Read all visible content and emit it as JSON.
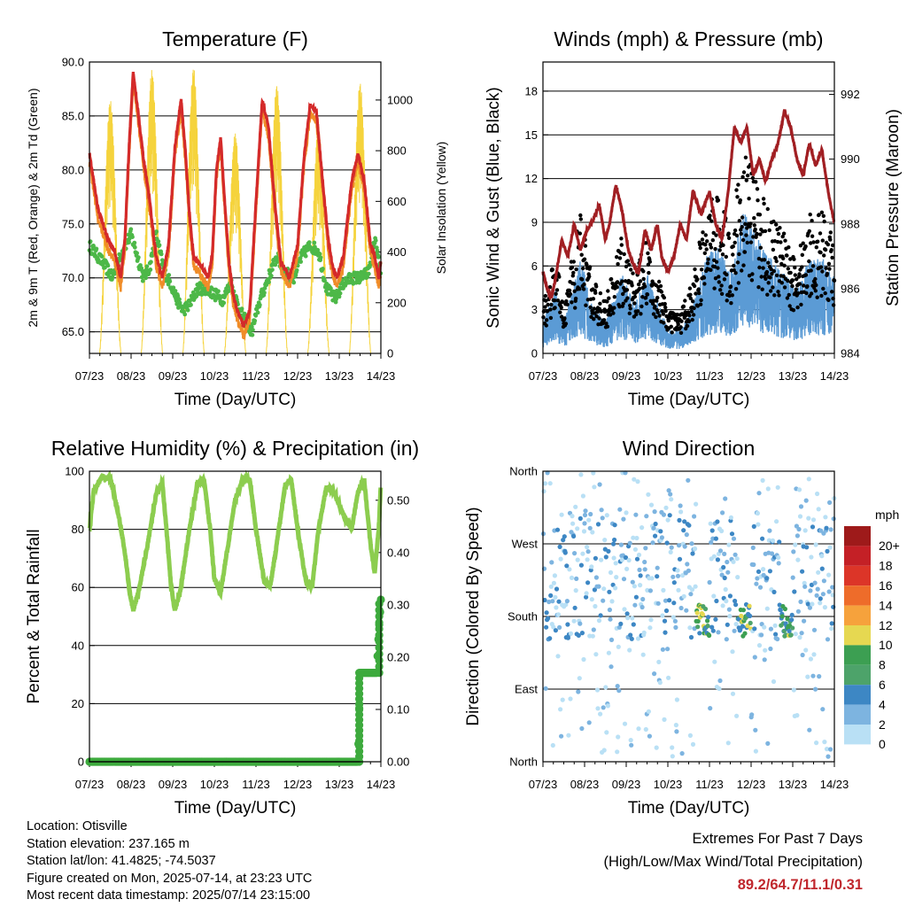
{
  "chart_data": [
    {
      "type": "line",
      "title": "Temperature (F)",
      "xlabel": "Time (Day/UTC)",
      "ylabel_left": "2m & 9m T (Red, Orange) & 2m Td (Green)",
      "ylabel_right": "Solar Insolation (Yellow)",
      "x_ticks": [
        "07/23",
        "08/23",
        "09/23",
        "10/23",
        "11/23",
        "12/23",
        "13/23",
        "14/23"
      ],
      "ylim": [
        63,
        90
      ],
      "y_ticks": [
        "65.0",
        "70.0",
        "75.0",
        "80.0",
        "85.0",
        "90.0"
      ],
      "y2lim": [
        0,
        1150
      ],
      "y2_ticks": [
        "0",
        "200",
        "400",
        "600",
        "800",
        "1000"
      ],
      "colors": {
        "t2m": "#d42a2a",
        "t9m": "#f08c28",
        "td": "#4db848",
        "solar": "#f5d33c"
      },
      "series": [
        {
          "key": "t2m",
          "x": [
            0,
            0.2,
            0.45,
            0.6,
            0.75,
            0.85,
            0.95,
            1.05,
            1.15,
            1.3,
            1.45,
            1.6,
            1.75,
            1.9,
            2.05,
            2.2,
            2.3,
            2.4,
            2.5,
            2.7,
            2.85,
            2.95,
            3.05,
            3.15,
            3.25,
            3.35,
            3.45,
            3.55,
            3.7,
            3.85,
            4.0,
            4.15,
            4.3,
            4.45,
            4.6,
            4.8,
            5.0,
            5.15,
            5.3,
            5.45,
            5.6,
            5.75,
            5.85,
            5.95,
            6.1,
            6.3,
            6.45,
            6.6,
            6.75,
            6.85,
            6.95,
            7.0
          ],
          "values": [
            81.5,
            76.5,
            73.5,
            72.5,
            70,
            73.5,
            82,
            89,
            86,
            81,
            77,
            72,
            70,
            73,
            82,
            86.5,
            82,
            76,
            72,
            71,
            70,
            72,
            80,
            83,
            77,
            71.5,
            68.5,
            67,
            65.5,
            67,
            77,
            86.5,
            84,
            77,
            71.5,
            70,
            73,
            81,
            86,
            85.5,
            79,
            73,
            71,
            70,
            72,
            79,
            81.5,
            79,
            73,
            72,
            70,
            71.5
          ]
        },
        {
          "key": "td",
          "x": [
            0,
            0.2,
            0.4,
            0.55,
            0.7,
            0.85,
            1.0,
            1.15,
            1.3,
            1.45,
            1.6,
            1.8,
            1.95,
            2.1,
            2.25,
            2.4,
            2.6,
            2.8,
            3.0,
            3.2,
            3.4,
            3.6,
            3.75,
            3.9,
            4.1,
            4.3,
            4.5,
            4.7,
            4.9,
            5.1,
            5.3,
            5.5,
            5.7,
            5.9,
            6.1,
            6.3,
            6.5,
            6.7,
            6.85,
            7.0
          ],
          "values": [
            73,
            72,
            71,
            70,
            71.5,
            73,
            74,
            72,
            70,
            71,
            74,
            70.5,
            69.5,
            68,
            67,
            67.5,
            69,
            69,
            68.5,
            68,
            69.5,
            67,
            66,
            65,
            68,
            70,
            72,
            70.5,
            70,
            72,
            73,
            72.5,
            69,
            68,
            69.5,
            70,
            70,
            70.5,
            73.5,
            70.5
          ]
        },
        {
          "key": "solar",
          "axis": "right",
          "days": [
            0.5,
            1.5,
            2.5,
            3.5,
            4.5,
            5.5,
            6.5
          ],
          "peaks": [
            1000,
            1120,
            1130,
            870,
            1060,
            900,
            1070
          ]
        }
      ]
    },
    {
      "type": "scatter",
      "title": "Winds (mph) & Pressure (mb)",
      "xlabel": "Time (Day/UTC)",
      "ylabel_left": "Sonic Wind & Gust (Blue, Black)",
      "ylabel_right": "Station Pressure (Maroon)",
      "x_ticks": [
        "07/23",
        "08/23",
        "09/23",
        "10/23",
        "11/23",
        "12/23",
        "13/23",
        "14/23"
      ],
      "ylim": [
        0,
        20
      ],
      "y_ticks": [
        "0",
        "3",
        "6",
        "9",
        "12",
        "15",
        "18"
      ],
      "y2lim": [
        984,
        993
      ],
      "y2_ticks": [
        "984",
        "986",
        "988",
        "990",
        "992"
      ],
      "colors": {
        "wind": "#5b9bd5",
        "gust": "#000000",
        "pressure": "#a11f23"
      },
      "series": [
        {
          "key": "pressure",
          "axis": "right",
          "x": [
            0,
            0.1,
            0.2,
            0.3,
            0.45,
            0.6,
            0.75,
            0.9,
            1.05,
            1.2,
            1.35,
            1.5,
            1.6,
            1.75,
            1.9,
            2.05,
            2.15,
            2.3,
            2.45,
            2.6,
            2.75,
            2.85,
            3.0,
            3.15,
            3.3,
            3.45,
            3.6,
            3.8,
            4.0,
            4.15,
            4.3,
            4.45,
            4.6,
            4.75,
            4.9,
            5.05,
            5.2,
            5.35,
            5.5,
            5.65,
            5.8,
            5.95,
            6.1,
            6.25,
            6.4,
            6.55,
            6.7,
            6.85,
            7.0
          ],
          "values": [
            986.5,
            986,
            985.7,
            986.3,
            987.5,
            987,
            988,
            987.2,
            987.8,
            988.1,
            988.6,
            987.5,
            988,
            989.2,
            988.4,
            987.2,
            986.8,
            986.5,
            987.8,
            987.2,
            988,
            987,
            986.5,
            987,
            988,
            987.5,
            989,
            988.3,
            989,
            988,
            987.5,
            989,
            991,
            990.5,
            991,
            989.5,
            990,
            989.3,
            990,
            990.5,
            991.5,
            991,
            990,
            989.5,
            990.5,
            989.8,
            990.3,
            989,
            988
          ]
        }
      ]
    },
    {
      "type": "line",
      "title": "Relative Humidity (%) & Precipitation (in)",
      "xlabel": "Time (Day/UTC)",
      "ylabel_left": "Percent & Total Rainfall",
      "x_ticks": [
        "07/23",
        "08/23",
        "09/23",
        "10/23",
        "11/23",
        "12/23",
        "13/23",
        "14/23"
      ],
      "ylim": [
        0,
        100
      ],
      "y_ticks": [
        "0",
        "20",
        "40",
        "60",
        "80",
        "100"
      ],
      "y2lim": [
        0,
        0.5555
      ],
      "y2_ticks": [
        "0.00",
        "0.10",
        "0.20",
        "0.30",
        "0.40",
        "0.50"
      ],
      "colors": {
        "rh": "#8ccd4f",
        "precip": "#3daa3d"
      },
      "series": [
        {
          "key": "rh",
          "x": [
            0,
            0.1,
            0.3,
            0.5,
            0.7,
            0.85,
            0.95,
            1.05,
            1.2,
            1.4,
            1.6,
            1.75,
            1.85,
            1.95,
            2.05,
            2.2,
            2.4,
            2.6,
            2.75,
            2.9,
            3.0,
            3.15,
            3.3,
            3.5,
            3.7,
            3.85,
            4.0,
            4.2,
            4.35,
            4.5,
            4.7,
            4.85,
            5.0,
            5.2,
            5.35,
            5.5,
            5.7,
            5.9,
            6.1,
            6.3,
            6.45,
            6.6,
            6.75,
            6.85,
            6.95,
            7.0
          ],
          "values": [
            80,
            93,
            98,
            98,
            85,
            72,
            60,
            52,
            60,
            75,
            92,
            96,
            80,
            62,
            52,
            60,
            80,
            96,
            97,
            80,
            63,
            58,
            72,
            90,
            98,
            97,
            80,
            62,
            61,
            75,
            95,
            97,
            80,
            62,
            60,
            80,
            95,
            92,
            85,
            80,
            93,
            97,
            75,
            65,
            80,
            96
          ]
        },
        {
          "key": "precip",
          "axis": "right",
          "x": [
            0,
            6.45,
            6.5,
            6.55,
            6.9,
            6.95,
            7.0
          ],
          "values": [
            0,
            0,
            0.17,
            0.17,
            0.17,
            0.25,
            0.31
          ]
        }
      ]
    },
    {
      "type": "scatter",
      "title": "Wind Direction",
      "xlabel": "Time (Day/UTC)",
      "ylabel_left": "Direction (Colored By Speed)",
      "x_ticks": [
        "07/23",
        "08/23",
        "09/23",
        "10/23",
        "11/23",
        "12/23",
        "13/23",
        "14/23"
      ],
      "y_ticks": [
        "North",
        "East",
        "South",
        "West",
        "North"
      ],
      "ylim": [
        0,
        360
      ],
      "legend": {
        "title": "mph",
        "labels": [
          "20+",
          "18",
          "16",
          "14",
          "12",
          "10",
          "8",
          "6",
          "4",
          "2",
          "0"
        ],
        "colors": [
          "#9e1a1a",
          "#c42026",
          "#dc3528",
          "#ee6c2a",
          "#f6a23c",
          "#e6d851",
          "#3c9f52",
          "#4da36a",
          "#3d87c4",
          "#7db4e0",
          "#b9e0f5"
        ],
        "placement": "right"
      }
    }
  ],
  "info": {
    "location": "Location: Otisville",
    "elevation": "Station elevation: 237.165 m",
    "latlon": "Station lat/lon: 41.4825; -74.5037",
    "created": "Figure created on Mon, 2025-07-14, at 23:23 UTC",
    "latest": "Most recent data timestamp: 2025/07/14 23:15:00"
  },
  "extremes": {
    "line1": "Extremes For Past 7 Days",
    "line2": "(High/Low/Max Wind/Total Precipitation)",
    "values": "89.2/64.7/11.1/0.31"
  }
}
